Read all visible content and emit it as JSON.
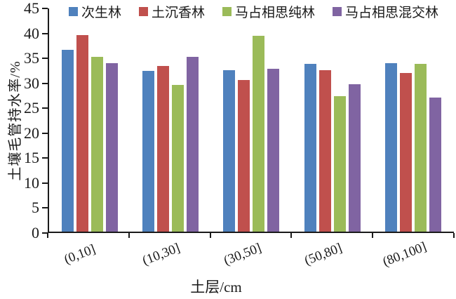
{
  "chart_data": {
    "type": "bar",
    "title": "",
    "categories": [
      "(0,10]",
      "(10,30]",
      "(30,50]",
      "(50,80]",
      "(80,100]"
    ],
    "series": [
      {
        "name": "次生林",
        "color": "#4F81BD",
        "values": [
          36.7,
          32.4,
          32.6,
          33.8,
          34.0
        ]
      },
      {
        "name": "土沉香林",
        "color": "#C0504D",
        "values": [
          39.6,
          33.4,
          30.6,
          32.5,
          32.0
        ]
      },
      {
        "name": "马占相思纯林",
        "color": "#9BBB59",
        "values": [
          35.2,
          29.6,
          39.5,
          27.3,
          33.8
        ]
      },
      {
        "name": "马占相思混交林",
        "color": "#8064A2",
        "values": [
          33.9,
          35.2,
          32.8,
          29.7,
          27.1
        ]
      }
    ],
    "xlabel": "土层/cm",
    "ylabel": "土壤毛管持水率/%",
    "ylim": [
      0,
      45
    ],
    "yticks": [
      0,
      5,
      10,
      15,
      20,
      25,
      30,
      35,
      40,
      45
    ],
    "axis_color": "#1a1a1a",
    "legend_position": "top",
    "grid": false
  }
}
